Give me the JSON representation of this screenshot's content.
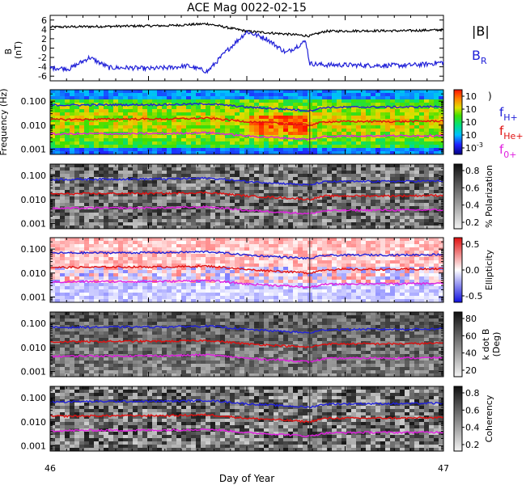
{
  "title": "ACE Mag 0022-02-15",
  "xlabel": "Day of Year",
  "colors": {
    "black": "#000000",
    "blue": "#2020d8",
    "red": "#e01010",
    "magenta": "#e020e0"
  },
  "chart_data": [
    {
      "type": "line",
      "panel": "magnetic-field",
      "ylabel": "B\n(nT)",
      "ylim": [
        -7,
        7
      ],
      "yticks": [
        -6,
        -4,
        -2,
        0,
        2,
        4,
        6
      ],
      "xlim": [
        46,
        47
      ],
      "xticks": [
        46,
        47
      ],
      "series": [
        {
          "name": "|B|",
          "color": "#000000",
          "x": [
            46.0,
            46.1,
            46.2,
            46.3,
            46.4,
            46.5,
            46.6,
            46.66,
            46.7,
            46.8,
            46.9,
            47.0
          ],
          "values": [
            4.5,
            4.6,
            4.7,
            4.8,
            5.2,
            3.6,
            3.0,
            2.6,
            3.6,
            3.7,
            3.7,
            3.9
          ]
        },
        {
          "name": "B",
          "subscript": "R",
          "color": "#2020d8",
          "x": [
            46.0,
            46.05,
            46.1,
            46.15,
            46.2,
            46.25,
            46.3,
            46.35,
            46.4,
            46.45,
            46.5,
            46.55,
            46.6,
            46.65,
            46.66,
            46.7,
            46.75,
            46.8,
            46.85,
            46.9,
            46.95,
            47.0
          ],
          "values": [
            -4.2,
            -4.4,
            -2.0,
            -4.2,
            -4.2,
            -4.4,
            -4.2,
            -3.8,
            -5.0,
            -0.5,
            3.5,
            2.0,
            -1.0,
            1.5,
            -3.3,
            -3.6,
            -3.6,
            -3.7,
            -3.7,
            -3.7,
            -3.5,
            -3.0
          ]
        }
      ]
    },
    {
      "type": "heatmap",
      "panel": "power-spectrum",
      "ylabel": "Frequency (Hz)",
      "ylim": [
        0.0006,
        0.3
      ],
      "yscale": "log",
      "yticks": [
        "0.001",
        "0.010",
        "0.100"
      ],
      "colorbar": {
        "ticks": [
          "10-3",
          "10",
          "10",
          "10",
          "10"
        ],
        "colormap": "rainbow"
      },
      "legend": [
        "fH+",
        "fHe+",
        "f0+"
      ]
    },
    {
      "type": "heatmap",
      "panel": "polarization",
      "ylim": [
        0.0006,
        0.3
      ],
      "yscale": "log",
      "yticks": [
        "0.001",
        "0.010",
        "0.100"
      ],
      "colorbar": {
        "label": "% Polarization",
        "ticks": [
          "0.2",
          "0.4",
          "0.6",
          "0.8"
        ],
        "colormap": "grayscale"
      }
    },
    {
      "type": "heatmap",
      "panel": "ellipticity",
      "ylim": [
        0.0006,
        0.3
      ],
      "yscale": "log",
      "yticks": [
        "0.001",
        "0.010",
        "0.100"
      ],
      "colorbar": {
        "label": "Ellipticity",
        "ticks": [
          "-0.5",
          "0.0",
          "0.5"
        ],
        "colormap": "blue-white-red"
      }
    },
    {
      "type": "heatmap",
      "panel": "k-dot-b",
      "ylim": [
        0.0006,
        0.3
      ],
      "yscale": "log",
      "yticks": [
        "0.001",
        "0.010",
        "0.100"
      ],
      "colorbar": {
        "label": "k dot B",
        "label2": "(Deg)",
        "ticks": [
          "20",
          "40",
          "60",
          "80"
        ],
        "colormap": "grayscale"
      }
    },
    {
      "type": "heatmap",
      "panel": "coherency",
      "ylim": [
        0.0006,
        0.3
      ],
      "yscale": "log",
      "yticks": [
        "0.001",
        "0.010",
        "0.100"
      ],
      "colorbar": {
        "label": "Coherency",
        "ticks": [
          "0.2",
          "0.4",
          "0.6",
          "0.8"
        ],
        "colormap": "grayscale"
      },
      "xticks": [
        46,
        47
      ]
    }
  ],
  "gyrofrequencies": {
    "x": [
      46.0,
      46.1,
      46.2,
      46.3,
      46.4,
      46.5,
      46.6,
      46.66,
      46.7,
      46.8,
      46.9,
      47.0
    ],
    "H+": [
      0.068,
      0.07,
      0.071,
      0.072,
      0.078,
      0.056,
      0.046,
      0.04,
      0.055,
      0.057,
      0.057,
      0.06
    ],
    "He+": [
      0.017,
      0.0175,
      0.018,
      0.018,
      0.0195,
      0.014,
      0.0115,
      0.01,
      0.014,
      0.0142,
      0.0142,
      0.015
    ],
    "O+": [
      0.0042,
      0.0044,
      0.0044,
      0.0045,
      0.0049,
      0.0035,
      0.0029,
      0.0025,
      0.0034,
      0.0036,
      0.0036,
      0.0037
    ]
  }
}
